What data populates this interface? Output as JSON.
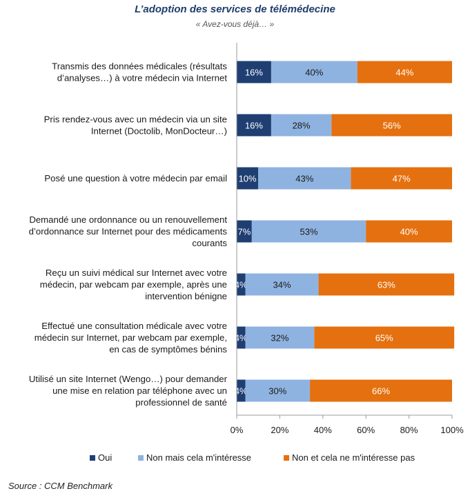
{
  "chart_data": {
    "type": "bar",
    "stacked": true,
    "orientation": "horizontal",
    "title": "L’adoption des services de télémédecine",
    "subtitle": "« Avez-vous déjà… »",
    "categories": [
      [
        "Transmis des données médicales (résultats",
        "d’analyses…) à votre médecin via Internet"
      ],
      [
        "Pris rendez-vous avec un médecin via un site",
        "Internet (Doctolib, MonDocteur…)"
      ],
      [
        "Posé une question à votre médecin par email"
      ],
      [
        "Demandé une ordonnance ou un renouvellement",
        "d’ordonnance sur Internet pour des médicaments",
        "courants"
      ],
      [
        "Reçu un suivi médical sur Internet avec votre",
        "médecin, par webcam par exemple, après une",
        "intervention bénigne"
      ],
      [
        "Effectué une consultation médicale avec votre",
        "médecin sur Internet, par webcam par exemple,",
        "en cas de symptômes bénins"
      ],
      [
        "Utilisé un site Internet (Wengo…) pour demander",
        "une mise en relation par téléphone avec un",
        "professionnel de santé"
      ]
    ],
    "series": [
      {
        "name": "Oui",
        "color": "#1f3f73",
        "label_color": "#ffffff",
        "values": [
          16,
          16,
          10,
          7,
          4,
          4,
          4
        ]
      },
      {
        "name": "Non mais cela m'intéresse",
        "color": "#8fb3e0",
        "label_color": "#1a1a1a",
        "values": [
          40,
          28,
          43,
          53,
          34,
          32,
          30
        ]
      },
      {
        "name": "Non et cela ne m'intéresse pas",
        "color": "#e5700f",
        "label_color": "#ffffff",
        "values": [
          44,
          56,
          47,
          40,
          63,
          65,
          66
        ]
      }
    ],
    "xlim": [
      0,
      100
    ],
    "xticks": [
      "0%",
      "20%",
      "40%",
      "60%",
      "80%",
      "100%"
    ],
    "legend_position": "bottom",
    "grid": false
  },
  "source": "Source : CCM Benchmark"
}
